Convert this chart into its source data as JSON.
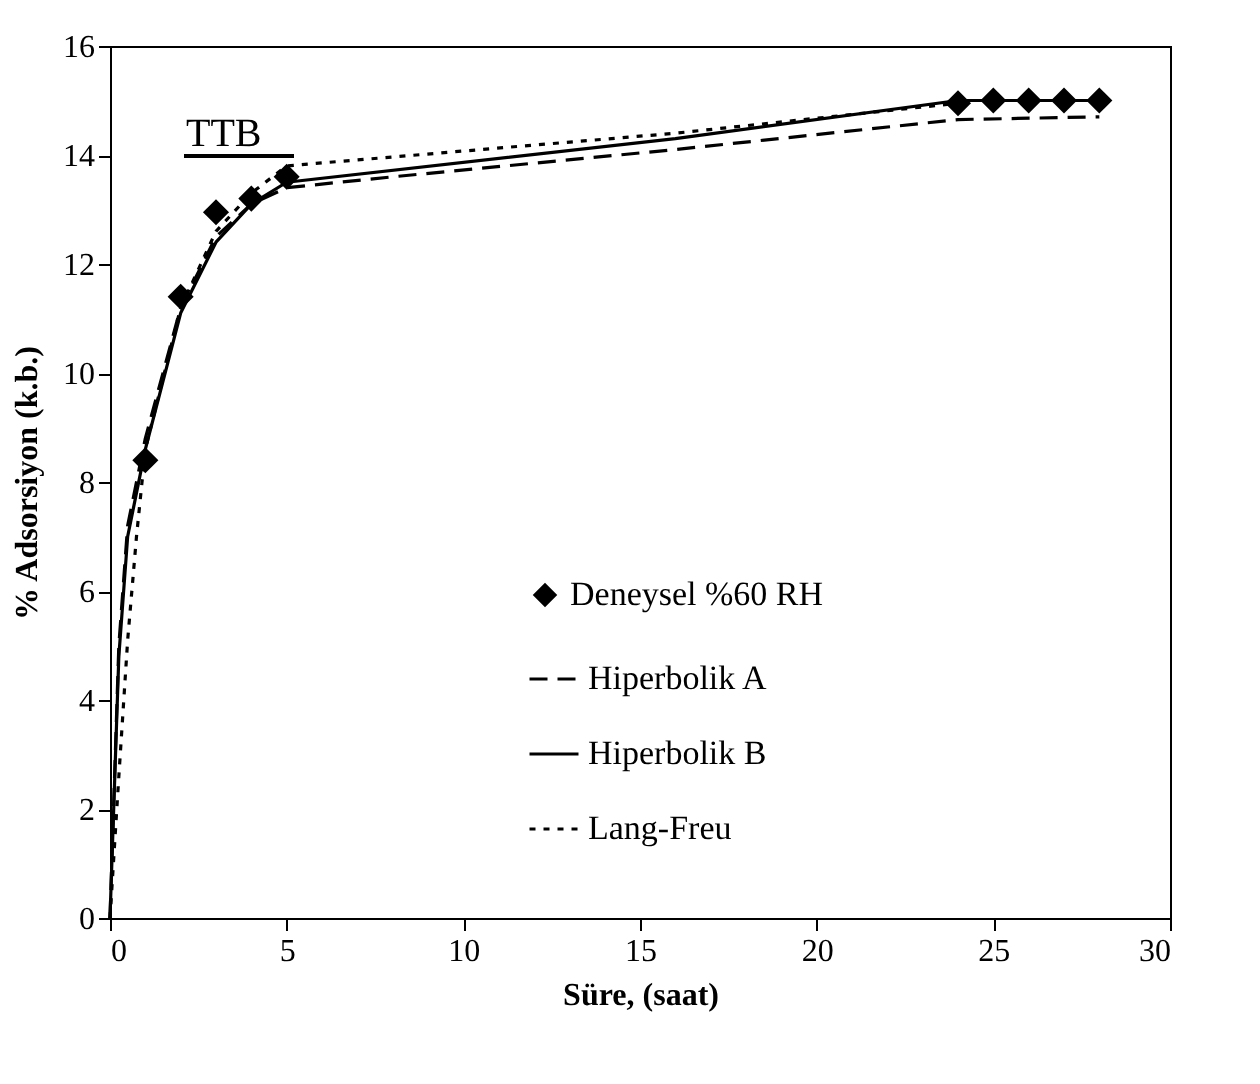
{
  "chart_data": {
    "type": "line",
    "xlabel": "Süre, (saat)",
    "ylabel": "% Adsorsiyon (k.b.)",
    "annotations": [
      "TTB"
    ],
    "xlim": [
      0,
      30
    ],
    "xticks": [
      0,
      5,
      10,
      15,
      20,
      25,
      30
    ],
    "ylim": [
      0,
      16
    ],
    "yticks": [
      0,
      2,
      4,
      6,
      8,
      10,
      12,
      14,
      16
    ],
    "grid": false,
    "legend": "bottom right",
    "series": [
      {
        "name": "Deneysel %60 RH",
        "type": "scatter",
        "marker": "diamond",
        "color": "#000000",
        "x": [
          1,
          2,
          3,
          4,
          5,
          24,
          25,
          26,
          27,
          28
        ],
        "values": [
          8.4,
          11.4,
          12.95,
          13.2,
          13.6,
          14.95,
          15,
          15,
          15,
          15
        ]
      },
      {
        "name": "Hiperbolik A",
        "line_style": "dashed",
        "color": "#000000",
        "x": [
          0,
          0.25,
          0.5,
          1,
          2,
          3,
          4,
          5,
          8,
          16,
          24,
          28
        ],
        "values": [
          0,
          5,
          7.2,
          8.8,
          11.2,
          12.5,
          13.1,
          13.4,
          13.6,
          14.1,
          14.65,
          14.7
        ]
      },
      {
        "name": "Hiperbolik B",
        "line_style": "solid",
        "color": "#000000",
        "x": [
          0,
          0.25,
          0.5,
          1,
          2,
          3,
          4,
          5,
          16,
          24,
          28
        ],
        "values": [
          0,
          4.8,
          7,
          8.6,
          11.1,
          12.4,
          13.1,
          13.5,
          14.3,
          15,
          15
        ]
      },
      {
        "name": "Lang-Freu",
        "line_style": "dotted",
        "color": "#000000",
        "x": [
          0,
          0.25,
          0.5,
          0.75,
          1,
          2,
          3,
          4,
          5,
          16,
          24
        ],
        "values": [
          0,
          2.6,
          5.1,
          7,
          8.6,
          11.2,
          12.6,
          13.3,
          13.8,
          14.4,
          14.95
        ]
      }
    ]
  }
}
